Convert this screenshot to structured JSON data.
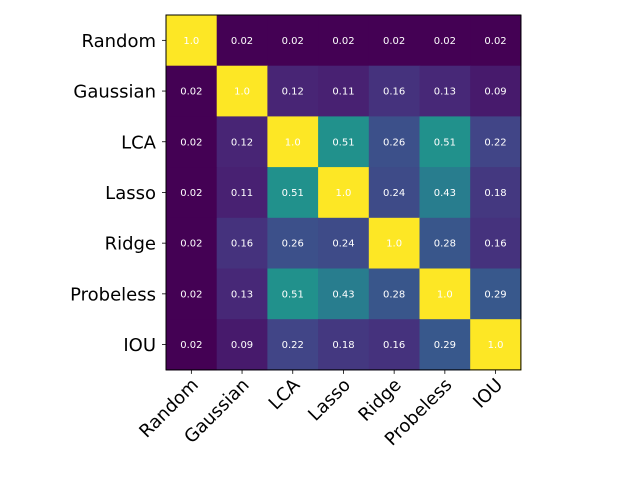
{
  "chart_data": {
    "type": "heatmap",
    "title": "",
    "xlabel": "",
    "ylabel": "",
    "row_labels": [
      "Random",
      "Gaussian",
      "LCA",
      "Lasso",
      "Ridge",
      "Probeless",
      "IOU"
    ],
    "col_labels": [
      "Random",
      "Gaussian",
      "LCA",
      "Lasso",
      "Ridge",
      "Probeless",
      "IOU"
    ],
    "values": [
      [
        1.0,
        0.02,
        0.02,
        0.02,
        0.02,
        0.02,
        0.02
      ],
      [
        0.02,
        1.0,
        0.12,
        0.11,
        0.16,
        0.13,
        0.09
      ],
      [
        0.02,
        0.12,
        1.0,
        0.51,
        0.26,
        0.51,
        0.22
      ],
      [
        0.02,
        0.11,
        0.51,
        1.0,
        0.24,
        0.43,
        0.18
      ],
      [
        0.02,
        0.16,
        0.26,
        0.24,
        1.0,
        0.28,
        0.16
      ],
      [
        0.02,
        0.13,
        0.51,
        0.43,
        0.28,
        1.0,
        0.29
      ],
      [
        0.02,
        0.09,
        0.22,
        0.18,
        0.16,
        0.29,
        1.0
      ]
    ],
    "value_labels": [
      [
        "1.0",
        "0.02",
        "0.02",
        "0.02",
        "0.02",
        "0.02",
        "0.02"
      ],
      [
        "0.02",
        "1.0",
        "0.12",
        "0.11",
        "0.16",
        "0.13",
        "0.09"
      ],
      [
        "0.02",
        "0.12",
        "1.0",
        "0.51",
        "0.26",
        "0.51",
        "0.22"
      ],
      [
        "0.02",
        "0.11",
        "0.51",
        "1.0",
        "0.24",
        "0.43",
        "0.18"
      ],
      [
        "0.02",
        "0.16",
        "0.26",
        "0.24",
        "1.0",
        "0.28",
        "0.16"
      ],
      [
        "0.02",
        "0.13",
        "0.51",
        "0.43",
        "0.28",
        "1.0",
        "0.29"
      ],
      [
        "0.02",
        "0.09",
        "0.22",
        "0.18",
        "0.16",
        "0.29",
        "1.0"
      ]
    ],
    "colormap": "viridis",
    "vmin": 0.02,
    "vmax": 1.0,
    "colorbar": false,
    "grid": false
  }
}
